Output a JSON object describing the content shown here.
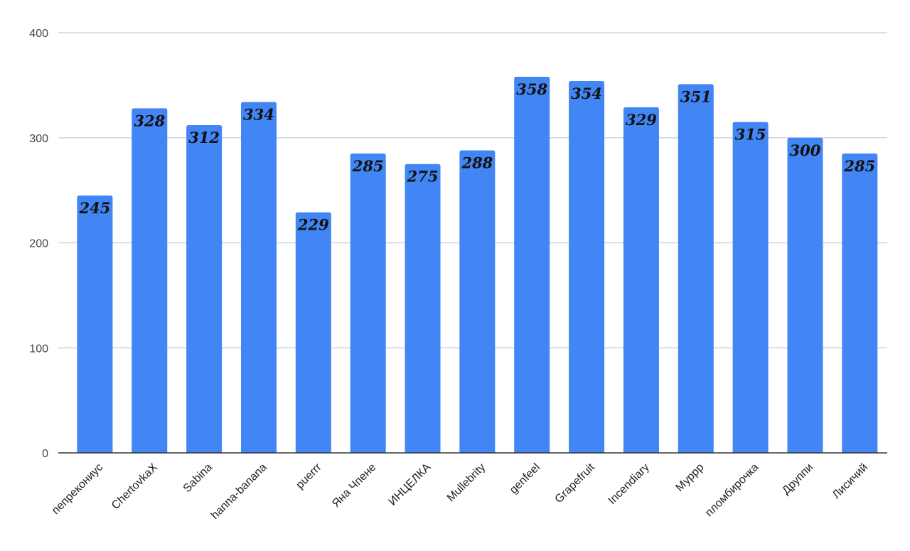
{
  "chart_data": {
    "type": "bar",
    "categories": [
      "пепрекониус",
      "ChertovkaX",
      "Sabina",
      "hanna-banana",
      "puerrr",
      "Яна Чпене",
      "ИНЦЕЛКА",
      "Mullebrity",
      "genfeel",
      "Grapefruit",
      "Incendiary",
      "Мурpp",
      "пломбирочка",
      "Друппи",
      "Лисичий"
    ],
    "values": [
      245,
      328,
      312,
      334,
      229,
      285,
      275,
      288,
      358,
      354,
      329,
      351,
      315,
      300,
      285
    ],
    "ylim": [
      0,
      400
    ],
    "yticks": [
      "0",
      "100",
      "200",
      "300",
      "400"
    ],
    "grid": true,
    "data_labels": true,
    "colors": {
      "bar": "#4285f4",
      "grid": "#cfd4e6",
      "axis": "#333333"
    }
  }
}
